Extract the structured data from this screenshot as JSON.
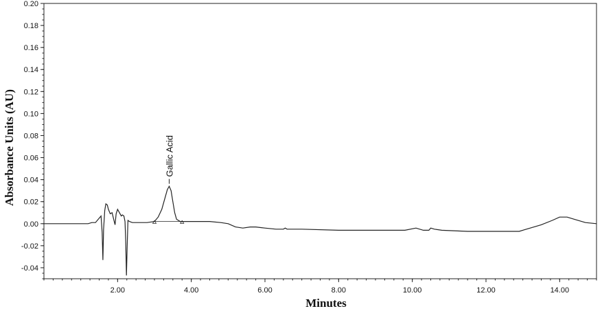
{
  "chart_data": {
    "type": "line",
    "title": "",
    "xlabel": "Minutes",
    "ylabel": "Absorbance Units (AU)",
    "xlim": [
      0,
      15
    ],
    "ylim": [
      -0.05,
      0.2
    ],
    "x_ticks": [
      2,
      4,
      6,
      8,
      10,
      12,
      14
    ],
    "x_tick_labels": [
      "2.00",
      "4.00",
      "6.00",
      "8.00",
      "10.00",
      "12.00",
      "14.00"
    ],
    "y_ticks": [
      -0.04,
      -0.02,
      0,
      0.02,
      0.04,
      0.06,
      0.08,
      0.1,
      0.12,
      0.14,
      0.16,
      0.18,
      0.2
    ],
    "y_tick_labels": [
      "-0.04",
      "-0.02",
      "0.00",
      "0.02",
      "0.04",
      "0.06",
      "0.08",
      "0.10",
      "0.12",
      "0.14",
      "0.16",
      "0.18",
      "0.20"
    ],
    "grid": false,
    "legend": "none",
    "series": [
      {
        "x": [
          0,
          1.2,
          1.3,
          1.4,
          1.5,
          1.55,
          1.58,
          1.6,
          1.62,
          1.65,
          1.68,
          1.72,
          1.75,
          1.8,
          1.85,
          1.9,
          1.93,
          1.96,
          2.0,
          2.05,
          2.1,
          2.13,
          2.17,
          2.2,
          2.22,
          2.24,
          2.26,
          2.28,
          2.32,
          2.4,
          2.6,
          2.8,
          3.0,
          3.1,
          3.2,
          3.3,
          3.35,
          3.4,
          3.45,
          3.5,
          3.55,
          3.6,
          3.7,
          3.8,
          4.0,
          4.5,
          4.8,
          5.0,
          5.2,
          5.4,
          5.6,
          5.75,
          6.0,
          6.3,
          6.5,
          6.55,
          6.6,
          7.0,
          8.0,
          9.0,
          9.8,
          10.1,
          10.3,
          10.45,
          10.5,
          10.6,
          10.8,
          11.5,
          12.0,
          12.5,
          12.9,
          13.2,
          13.5,
          13.8,
          14.0,
          14.1,
          14.2,
          14.4,
          14.7,
          15.0
        ],
        "y": [
          0,
          0,
          0.001,
          0.001,
          0.005,
          0.007,
          -0.008,
          -0.033,
          -0.005,
          0.012,
          0.018,
          0.017,
          0.013,
          0.009,
          0.01,
          0.003,
          -0.001,
          0.009,
          0.013,
          0.01,
          0.007,
          0.008,
          0.007,
          0.002,
          -0.015,
          -0.047,
          -0.02,
          0.003,
          0.002,
          0.001,
          0.001,
          0.001,
          0.002,
          0.006,
          0.013,
          0.025,
          0.031,
          0.034,
          0.03,
          0.02,
          0.01,
          0.004,
          0.002,
          0.002,
          0.002,
          0.002,
          0.001,
          0.0,
          -0.003,
          -0.004,
          -0.003,
          -0.003,
          -0.004,
          -0.005,
          -0.005,
          -0.004,
          -0.005,
          -0.005,
          -0.006,
          -0.006,
          -0.006,
          -0.004,
          -0.006,
          -0.006,
          -0.004,
          -0.005,
          -0.006,
          -0.007,
          -0.007,
          -0.007,
          -0.007,
          -0.004,
          -0.001,
          0.003,
          0.006,
          0.006,
          0.006,
          0.004,
          0.001,
          0.0
        ]
      }
    ],
    "annotations": [
      {
        "text": "Gallic Acid",
        "x": 3.4,
        "y": 0.035
      }
    ],
    "integration_markers": [
      3.0,
      3.75
    ]
  }
}
